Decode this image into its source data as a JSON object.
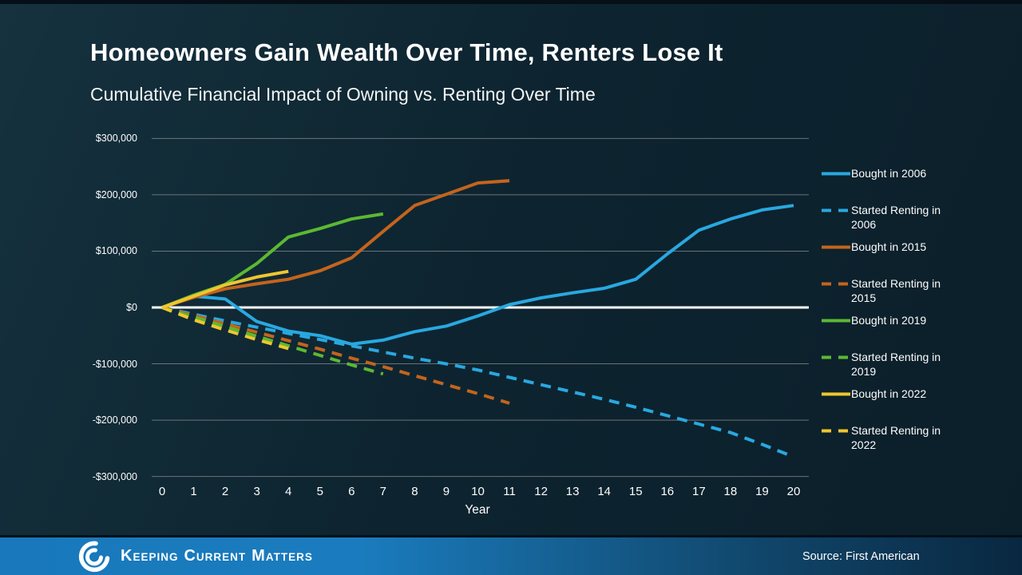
{
  "slide": {
    "title": "Homeowners Gain Wealth Over Time, Renters Lose It",
    "subtitle": "Cumulative Financial Impact of Owning vs. Renting Over Time"
  },
  "footer": {
    "brand": "Keeping Current Matters",
    "source": "Source: First American",
    "logo_icon": "kcm-swirl-icon"
  },
  "colors": {
    "blue": "#29A8E0",
    "orange": "#C4641D",
    "green": "#5CB832",
    "yellow": "#EFC62F",
    "grid": "#8E8E8E",
    "zero_line": "#FFFFFF",
    "footer_blue": "#1878BB",
    "background": "#0D2430"
  },
  "chart_data": {
    "type": "line",
    "title": "Cumulative Financial Impact of Owning vs. Renting Over Time",
    "xlabel": "Year",
    "ylabel": "",
    "xlim": [
      0,
      20
    ],
    "ylim": [
      -300000,
      300000
    ],
    "grid": true,
    "legend_position": "right",
    "x_ticks": [
      0,
      1,
      2,
      3,
      4,
      5,
      6,
      7,
      8,
      9,
      10,
      11,
      12,
      13,
      14,
      15,
      16,
      17,
      18,
      19,
      20
    ],
    "y_ticks": [
      {
        "label": "$300,000",
        "value": 300000
      },
      {
        "label": "$200,000",
        "value": 200000
      },
      {
        "label": "$100,000",
        "value": 100000
      },
      {
        "label": "$0",
        "value": 0
      },
      {
        "label": "-$100,000",
        "value": -100000
      },
      {
        "label": "-$200,000",
        "value": -200000
      },
      {
        "label": "-$300,000",
        "value": -300000
      }
    ],
    "series": [
      {
        "name": "Bought in 2006",
        "line_style": "solid",
        "color": "#29A8E0",
        "x": [
          0,
          1,
          2,
          3,
          4,
          5,
          6,
          7,
          8,
          9,
          10,
          11,
          12,
          13,
          14,
          15,
          16,
          17,
          18,
          19,
          20
        ],
        "values_usd": [
          0,
          20000,
          15000,
          -25000,
          -42000,
          -50000,
          -65000,
          -58000,
          -43000,
          -33000,
          -15000,
          5000,
          17000,
          26000,
          34000,
          50000,
          95000,
          137000,
          157000,
          173000,
          181000
        ]
      },
      {
        "name": "Started Renting in 2006",
        "line_style": "dashed",
        "color": "#29A8E0",
        "x": [
          0,
          1,
          2,
          3,
          4,
          5,
          6,
          7,
          8,
          9,
          10,
          11,
          12,
          13,
          14,
          15,
          16,
          17,
          18,
          19,
          20
        ],
        "values_usd": [
          0,
          -12000,
          -24000,
          -35000,
          -46000,
          -57000,
          -68000,
          -79000,
          -90000,
          -100000,
          -111000,
          -124000,
          -137000,
          -150000,
          -163000,
          -177000,
          -192000,
          -207000,
          -222000,
          -243000,
          -265000
        ]
      },
      {
        "name": "Bought in 2015",
        "line_style": "solid",
        "color": "#C4641D",
        "x": [
          0,
          1,
          2,
          3,
          4,
          5,
          6,
          7,
          8,
          9,
          10,
          11
        ],
        "values_usd": [
          0,
          18000,
          33000,
          42000,
          50000,
          65000,
          88000,
          135000,
          181000,
          201000,
          221000,
          225000
        ]
      },
      {
        "name": "Started Renting in 2015",
        "line_style": "dashed",
        "color": "#C4641D",
        "x": [
          0,
          1,
          2,
          3,
          4,
          5,
          6,
          7,
          8,
          9,
          10,
          11
        ],
        "values_usd": [
          0,
          -14000,
          -29000,
          -44000,
          -59000,
          -74000,
          -90000,
          -105000,
          -121000,
          -137000,
          -153000,
          -170000
        ]
      },
      {
        "name": "Bought in 2019",
        "line_style": "solid",
        "color": "#5CB832",
        "x": [
          0,
          1,
          2,
          3,
          4,
          5,
          6,
          7
        ],
        "values_usd": [
          0,
          22000,
          41000,
          78000,
          125000,
          140000,
          157000,
          166000
        ]
      },
      {
        "name": "Started Renting in 2019",
        "line_style": "dashed",
        "color": "#5CB832",
        "x": [
          0,
          1,
          2,
          3,
          4,
          5,
          6,
          7
        ],
        "values_usd": [
          0,
          -17000,
          -34000,
          -51000,
          -68000,
          -85000,
          -102000,
          -118000
        ]
      },
      {
        "name": "Bought in 2022",
        "line_style": "solid",
        "color": "#EFC62F",
        "x": [
          0,
          1,
          2,
          3,
          4
        ],
        "values_usd": [
          0,
          20000,
          40000,
          54000,
          64000
        ]
      },
      {
        "name": "Started Renting in 2022",
        "line_style": "dashed",
        "color": "#EFC62F",
        "x": [
          0,
          1,
          2,
          3,
          4
        ],
        "values_usd": [
          0,
          -22000,
          -40000,
          -57000,
          -73000
        ]
      }
    ]
  }
}
